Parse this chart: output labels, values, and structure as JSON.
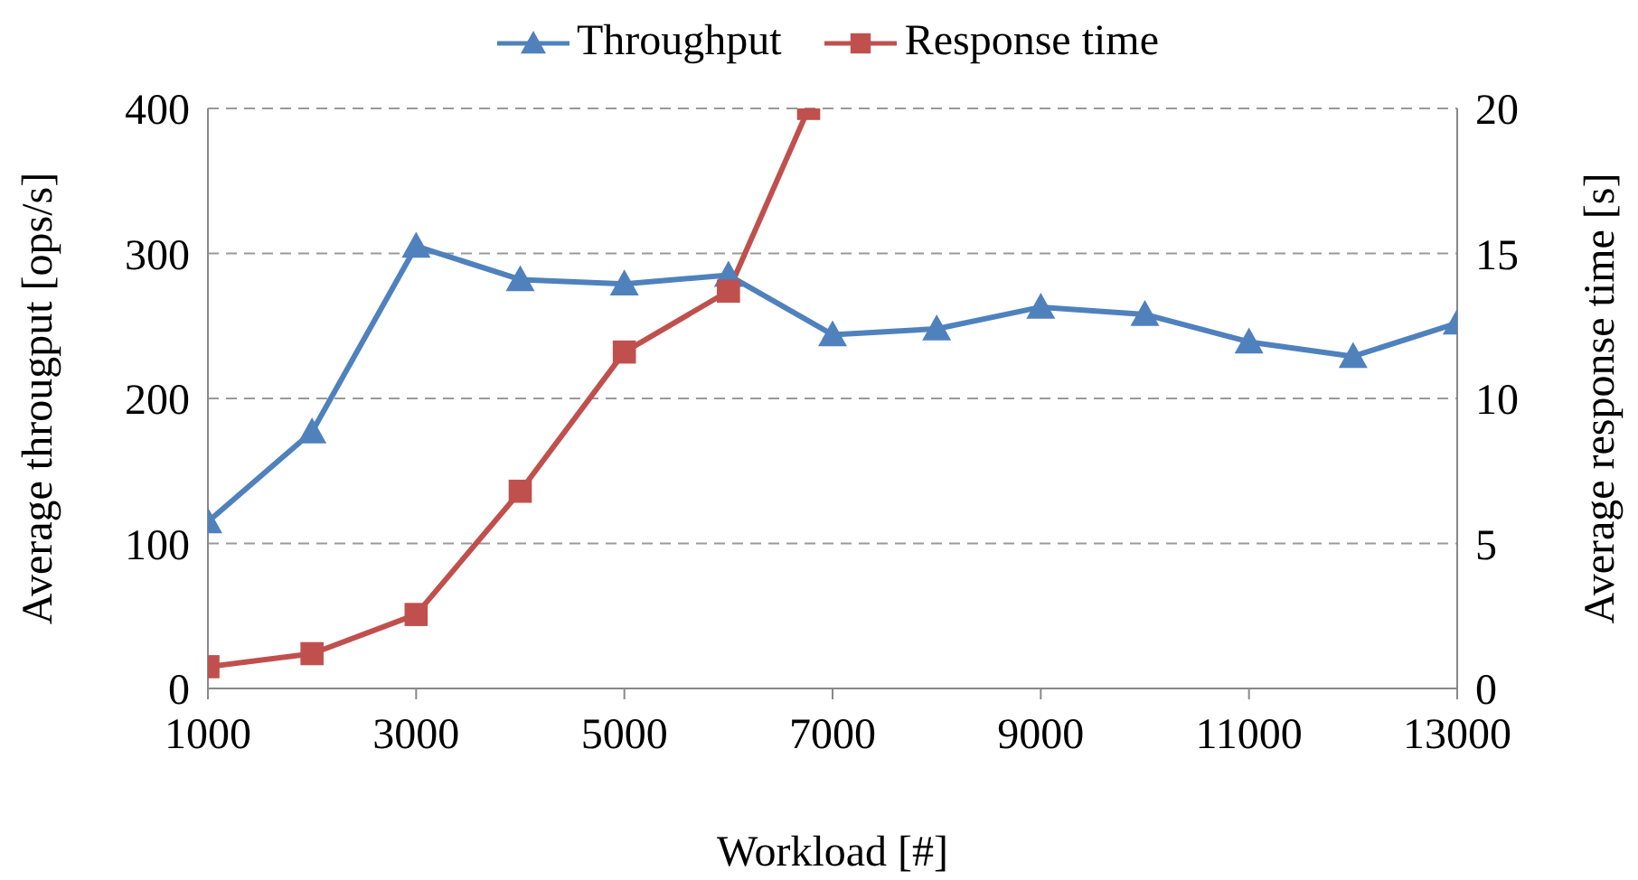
{
  "chart_data": {
    "type": "line",
    "xlabel": "Workload [#]",
    "ylabel": "Average througput [ops/s]",
    "y2label": "Average response time [s]",
    "x": [
      1000,
      2000,
      3000,
      4000,
      5000,
      6000,
      7000,
      8000,
      9000,
      10000,
      11000,
      12000,
      13000
    ],
    "series": [
      {
        "name": "Throughput",
        "color": "#4f81bd",
        "marker": "triangle",
        "values": [
          115,
          177,
          305,
          282,
          279,
          285,
          244,
          248,
          263,
          258,
          239,
          229,
          252
        ]
      },
      {
        "name": "Response time",
        "color": "#c0504d",
        "marker": "square",
        "axis": "y2",
        "x": [
          1000,
          2000,
          3000,
          4000,
          5000,
          6000,
          6770
        ],
        "values": [
          0.75,
          1.2,
          2.55,
          6.8,
          11.6,
          13.7,
          20
        ]
      }
    ],
    "xlim": [
      1000,
      13000
    ],
    "xticks": [
      1000,
      3000,
      5000,
      7000,
      9000,
      11000,
      13000
    ],
    "ylim": [
      0,
      400
    ],
    "yticks": [
      0,
      100,
      200,
      300,
      400
    ],
    "y2lim": [
      0,
      20
    ],
    "y2ticks": [
      0,
      5,
      10,
      15,
      20
    ],
    "grid": "y",
    "legend": "top",
    "line_style": "solid"
  }
}
